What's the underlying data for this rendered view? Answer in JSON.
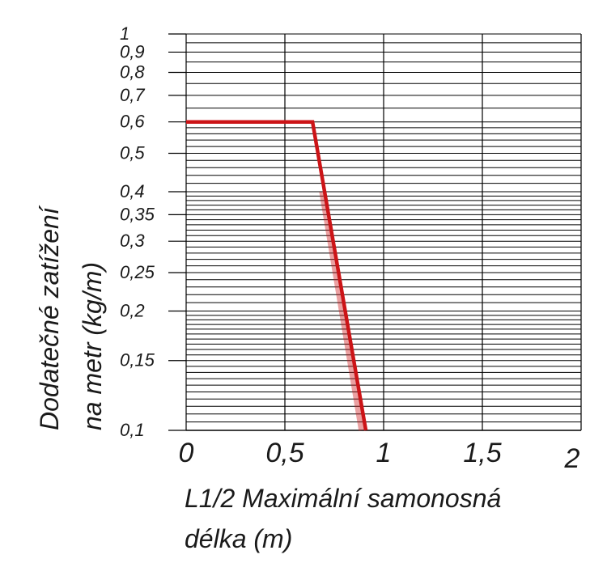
{
  "chart_data": {
    "type": "line",
    "xlabel_lines": [
      "L1/2 Maximální samonosná",
      "délka (m)"
    ],
    "ylabel_lines": [
      "Dodatečné zatížení",
      "na metr (kg/m)"
    ],
    "x_ticks": [
      "0",
      "0,5",
      "1",
      "1,5",
      "2"
    ],
    "x_tick_values": [
      0,
      0.5,
      1,
      1.5,
      2
    ],
    "y_ticks": [
      "1",
      "0,9",
      "0,8",
      "0,7",
      "0,6",
      "0,5",
      "0,4",
      "0,35",
      "0,3",
      "0,25",
      "0,2",
      "0,15",
      "0,1"
    ],
    "y_tick_values": [
      1,
      0.9,
      0.8,
      0.7,
      0.6,
      0.5,
      0.4,
      0.35,
      0.3,
      0.25,
      0.2,
      0.15,
      0.1
    ],
    "xlim": [
      0,
      2
    ],
    "ylim": [
      0.1,
      1
    ],
    "y_scale": "log",
    "grid": true,
    "series": [
      {
        "x": [
          0,
          0.64,
          0.91
        ],
        "y": [
          0.6,
          0.6,
          0.1
        ],
        "color": "#cc1417"
      }
    ],
    "shadow_series": {
      "x": [
        0.69,
        0.89
      ],
      "y": [
        0.4,
        0.1
      ],
      "color": "#cc1417"
    }
  }
}
